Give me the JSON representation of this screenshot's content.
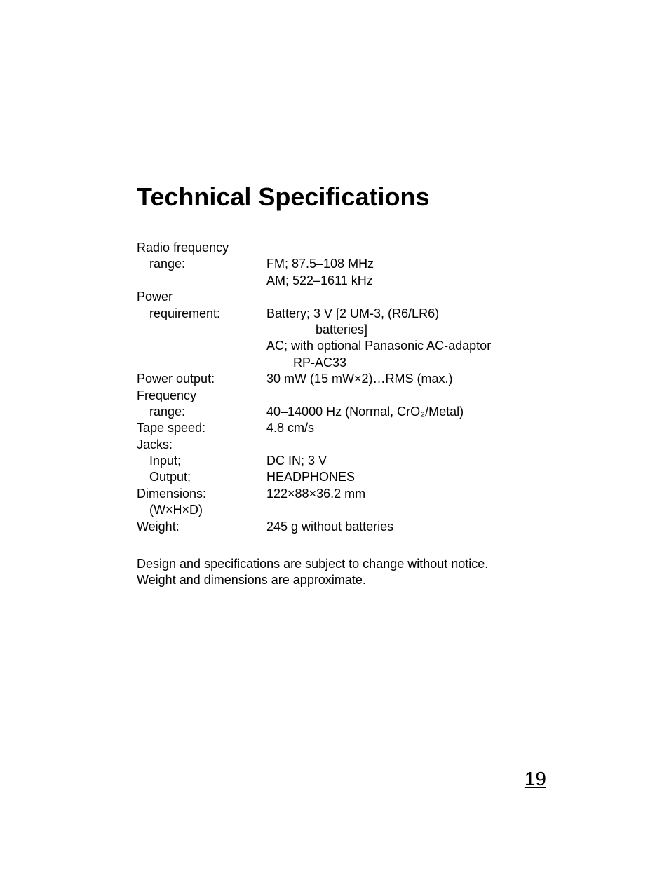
{
  "page": {
    "title": "Technical Specifications",
    "pageNumber": "19"
  },
  "specs": {
    "radioFreq": {
      "label": "Radio frequency",
      "sublabel": "range:",
      "fm": "FM;  87.5–108 MHz",
      "am": "AM;  522–1611 kHz"
    },
    "power": {
      "label": "Power",
      "sublabel": "requirement:",
      "battery1": "Battery;  3 V [2 UM-3, (R6/LR6)",
      "battery2": "batteries]",
      "ac1": "AC;  with optional Panasonic AC-adaptor",
      "ac2": "RP-AC33"
    },
    "powerOutput": {
      "label": "Power output:",
      "value": "30 mW (15 mW×2)…RMS (max.)"
    },
    "freqRange": {
      "label": "Frequency",
      "sublabel": "range:",
      "value": "40–14000 Hz (Normal, CrO₂/Metal)"
    },
    "tapeSpeed": {
      "label": "Tape speed:",
      "value": "4.8 cm/s"
    },
    "jacks": {
      "label": "Jacks:",
      "inputLabel": "Input;",
      "inputValue": "DC IN;  3 V",
      "outputLabel": "Output;",
      "outputValue": "HEADPHONES"
    },
    "dimensions": {
      "label": "Dimensions:",
      "sublabel": "(W×H×D)",
      "value": "122×88×36.2 mm"
    },
    "weight": {
      "label": "Weight:",
      "value": "245 g without batteries"
    }
  },
  "notes": {
    "line1": "Design and specifications are subject to change without notice.",
    "line2": "Weight and dimensions are approximate."
  },
  "style": {
    "background": "#ffffff",
    "text": "#000000",
    "titleSize": 36,
    "bodySize": 18,
    "pageNumSize": 28
  }
}
